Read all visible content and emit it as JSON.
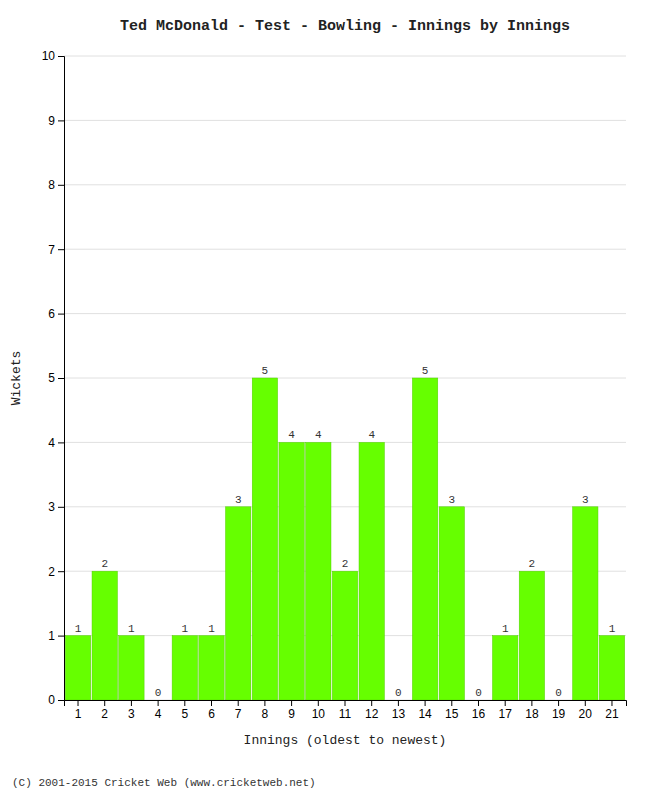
{
  "chart_data": {
    "type": "bar",
    "title": "Ted McDonald - Test - Bowling - Innings by Innings",
    "xlabel": "Innings (oldest to newest)",
    "ylabel": "Wickets",
    "footnote": "(C) 2001-2015 Cricket Web (www.cricketweb.net)",
    "categories": [
      1,
      2,
      3,
      4,
      5,
      6,
      7,
      8,
      9,
      10,
      11,
      12,
      13,
      14,
      15,
      16,
      17,
      18,
      19,
      20,
      21
    ],
    "values": [
      1,
      2,
      1,
      0,
      1,
      1,
      3,
      5,
      4,
      4,
      2,
      4,
      0,
      5,
      3,
      0,
      1,
      2,
      0,
      3,
      1
    ],
    "color": "#66ff00",
    "ylim": [
      0,
      10
    ],
    "yticks": [
      0,
      1,
      2,
      3,
      4,
      5,
      6,
      7,
      8,
      9,
      10
    ],
    "grid": true,
    "data_labels": true
  }
}
